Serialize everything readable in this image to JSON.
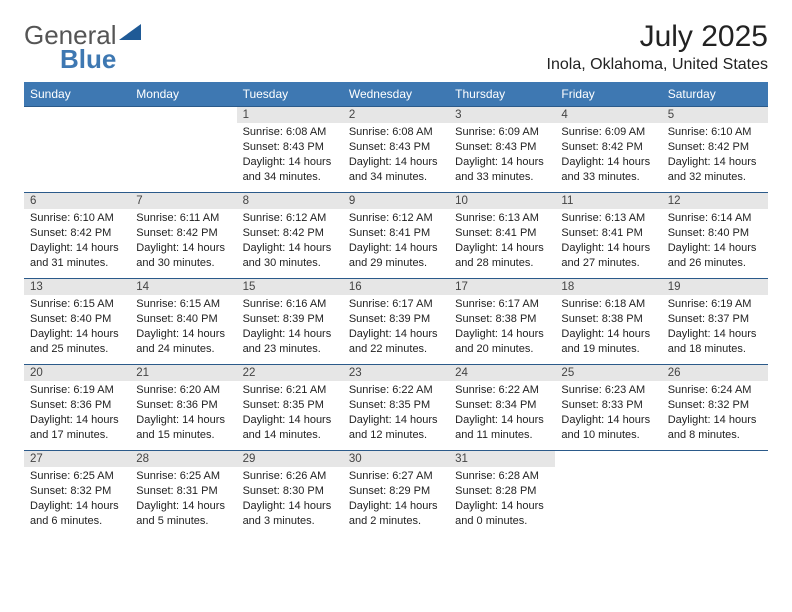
{
  "logo": {
    "text1": "General",
    "text2": "Blue",
    "triangle_color": "#1f5a96"
  },
  "header": {
    "title": "July 2025",
    "location": "Inola, Oklahoma, United States"
  },
  "style": {
    "header_bg": "#3e78b2",
    "header_fg": "#ffffff",
    "daynum_bg": "#e6e6e6",
    "daynum_fg": "#444444",
    "rule_color": "#2b5a8a",
    "text_color": "#222222",
    "title_fontsize": 30,
    "location_fontsize": 16,
    "body_fontsize": 11
  },
  "day_headers": [
    "Sunday",
    "Monday",
    "Tuesday",
    "Wednesday",
    "Thursday",
    "Friday",
    "Saturday"
  ],
  "weeks": [
    [
      null,
      null,
      {
        "n": "1",
        "sr": "Sunrise: 6:08 AM",
        "ss": "Sunset: 8:43 PM",
        "dl": "Daylight: 14 hours and 34 minutes."
      },
      {
        "n": "2",
        "sr": "Sunrise: 6:08 AM",
        "ss": "Sunset: 8:43 PM",
        "dl": "Daylight: 14 hours and 34 minutes."
      },
      {
        "n": "3",
        "sr": "Sunrise: 6:09 AM",
        "ss": "Sunset: 8:43 PM",
        "dl": "Daylight: 14 hours and 33 minutes."
      },
      {
        "n": "4",
        "sr": "Sunrise: 6:09 AM",
        "ss": "Sunset: 8:42 PM",
        "dl": "Daylight: 14 hours and 33 minutes."
      },
      {
        "n": "5",
        "sr": "Sunrise: 6:10 AM",
        "ss": "Sunset: 8:42 PM",
        "dl": "Daylight: 14 hours and 32 minutes."
      }
    ],
    [
      {
        "n": "6",
        "sr": "Sunrise: 6:10 AM",
        "ss": "Sunset: 8:42 PM",
        "dl": "Daylight: 14 hours and 31 minutes."
      },
      {
        "n": "7",
        "sr": "Sunrise: 6:11 AM",
        "ss": "Sunset: 8:42 PM",
        "dl": "Daylight: 14 hours and 30 minutes."
      },
      {
        "n": "8",
        "sr": "Sunrise: 6:12 AM",
        "ss": "Sunset: 8:42 PM",
        "dl": "Daylight: 14 hours and 30 minutes."
      },
      {
        "n": "9",
        "sr": "Sunrise: 6:12 AM",
        "ss": "Sunset: 8:41 PM",
        "dl": "Daylight: 14 hours and 29 minutes."
      },
      {
        "n": "10",
        "sr": "Sunrise: 6:13 AM",
        "ss": "Sunset: 8:41 PM",
        "dl": "Daylight: 14 hours and 28 minutes."
      },
      {
        "n": "11",
        "sr": "Sunrise: 6:13 AM",
        "ss": "Sunset: 8:41 PM",
        "dl": "Daylight: 14 hours and 27 minutes."
      },
      {
        "n": "12",
        "sr": "Sunrise: 6:14 AM",
        "ss": "Sunset: 8:40 PM",
        "dl": "Daylight: 14 hours and 26 minutes."
      }
    ],
    [
      {
        "n": "13",
        "sr": "Sunrise: 6:15 AM",
        "ss": "Sunset: 8:40 PM",
        "dl": "Daylight: 14 hours and 25 minutes."
      },
      {
        "n": "14",
        "sr": "Sunrise: 6:15 AM",
        "ss": "Sunset: 8:40 PM",
        "dl": "Daylight: 14 hours and 24 minutes."
      },
      {
        "n": "15",
        "sr": "Sunrise: 6:16 AM",
        "ss": "Sunset: 8:39 PM",
        "dl": "Daylight: 14 hours and 23 minutes."
      },
      {
        "n": "16",
        "sr": "Sunrise: 6:17 AM",
        "ss": "Sunset: 8:39 PM",
        "dl": "Daylight: 14 hours and 22 minutes."
      },
      {
        "n": "17",
        "sr": "Sunrise: 6:17 AM",
        "ss": "Sunset: 8:38 PM",
        "dl": "Daylight: 14 hours and 20 minutes."
      },
      {
        "n": "18",
        "sr": "Sunrise: 6:18 AM",
        "ss": "Sunset: 8:38 PM",
        "dl": "Daylight: 14 hours and 19 minutes."
      },
      {
        "n": "19",
        "sr": "Sunrise: 6:19 AM",
        "ss": "Sunset: 8:37 PM",
        "dl": "Daylight: 14 hours and 18 minutes."
      }
    ],
    [
      {
        "n": "20",
        "sr": "Sunrise: 6:19 AM",
        "ss": "Sunset: 8:36 PM",
        "dl": "Daylight: 14 hours and 17 minutes."
      },
      {
        "n": "21",
        "sr": "Sunrise: 6:20 AM",
        "ss": "Sunset: 8:36 PM",
        "dl": "Daylight: 14 hours and 15 minutes."
      },
      {
        "n": "22",
        "sr": "Sunrise: 6:21 AM",
        "ss": "Sunset: 8:35 PM",
        "dl": "Daylight: 14 hours and 14 minutes."
      },
      {
        "n": "23",
        "sr": "Sunrise: 6:22 AM",
        "ss": "Sunset: 8:35 PM",
        "dl": "Daylight: 14 hours and 12 minutes."
      },
      {
        "n": "24",
        "sr": "Sunrise: 6:22 AM",
        "ss": "Sunset: 8:34 PM",
        "dl": "Daylight: 14 hours and 11 minutes."
      },
      {
        "n": "25",
        "sr": "Sunrise: 6:23 AM",
        "ss": "Sunset: 8:33 PM",
        "dl": "Daylight: 14 hours and 10 minutes."
      },
      {
        "n": "26",
        "sr": "Sunrise: 6:24 AM",
        "ss": "Sunset: 8:32 PM",
        "dl": "Daylight: 14 hours and 8 minutes."
      }
    ],
    [
      {
        "n": "27",
        "sr": "Sunrise: 6:25 AM",
        "ss": "Sunset: 8:32 PM",
        "dl": "Daylight: 14 hours and 6 minutes."
      },
      {
        "n": "28",
        "sr": "Sunrise: 6:25 AM",
        "ss": "Sunset: 8:31 PM",
        "dl": "Daylight: 14 hours and 5 minutes."
      },
      {
        "n": "29",
        "sr": "Sunrise: 6:26 AM",
        "ss": "Sunset: 8:30 PM",
        "dl": "Daylight: 14 hours and 3 minutes."
      },
      {
        "n": "30",
        "sr": "Sunrise: 6:27 AM",
        "ss": "Sunset: 8:29 PM",
        "dl": "Daylight: 14 hours and 2 minutes."
      },
      {
        "n": "31",
        "sr": "Sunrise: 6:28 AM",
        "ss": "Sunset: 8:28 PM",
        "dl": "Daylight: 14 hours and 0 minutes."
      },
      null,
      null
    ]
  ]
}
